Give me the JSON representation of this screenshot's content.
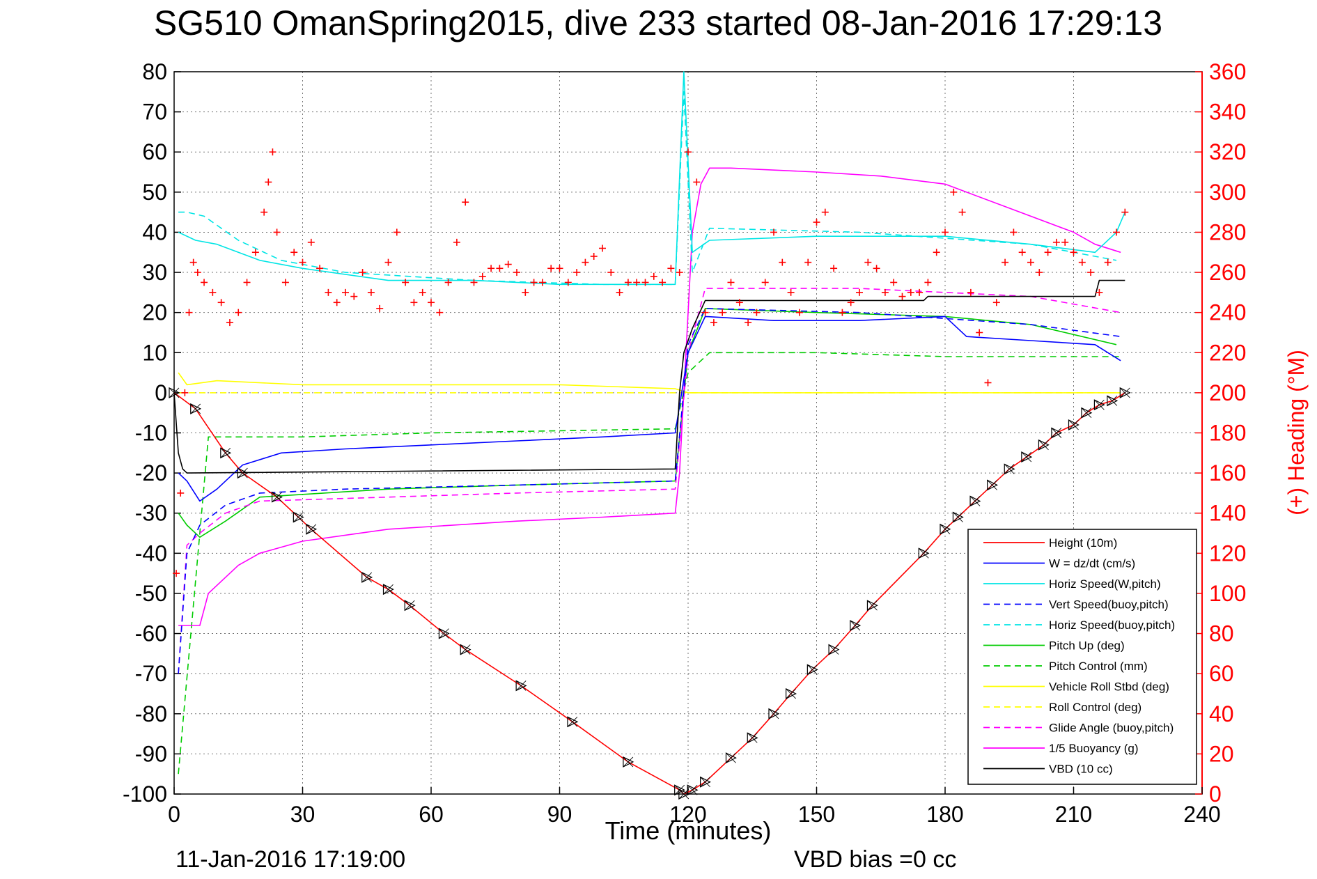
{
  "chart_data": {
    "type": "line",
    "title": "SG510 OmanSpring2015, dive 233 started 08-Jan-2016 17:29:13",
    "xlabel": "Time (minutes)",
    "ylabel": "",
    "y2label": "(+) Heading (°M)",
    "xlim": [
      0,
      240
    ],
    "ylim": [
      -100,
      80
    ],
    "y2lim": [
      0,
      360
    ],
    "x_ticks": [
      "0",
      "30",
      "60",
      "90",
      "120",
      "150",
      "180",
      "210",
      "240"
    ],
    "y_ticks": [
      "80",
      "70",
      "60",
      "50",
      "40",
      "30",
      "20",
      "10",
      "0",
      "-10",
      "-20",
      "-30",
      "-40",
      "-50",
      "-60",
      "-70",
      "-80",
      "-90",
      "-100"
    ],
    "y2_ticks": [
      "360",
      "340",
      "320",
      "300",
      "280",
      "260",
      "240",
      "220",
      "200",
      "180",
      "160",
      "140",
      "120",
      "100",
      "80",
      "60",
      "40",
      "20",
      "0"
    ],
    "grid": true,
    "legend_position": "bottom-right",
    "footer_date": "11-Jan-2016 17:19:00",
    "footer_bias": "VBD bias =0 cc",
    "series": [
      {
        "name": "Height (10m)",
        "color": "#ff0000",
        "style": "solid",
        "x": [
          0,
          5,
          12,
          16,
          24,
          29,
          32,
          45,
          50,
          55,
          63,
          68,
          81,
          93,
          106,
          118,
          119,
          121,
          124,
          130,
          135,
          140,
          144,
          149,
          154,
          159,
          163,
          175,
          180,
          183,
          187,
          191,
          195,
          199,
          203,
          206,
          210,
          213,
          216,
          219,
          222
        ],
        "y": [
          0,
          -4,
          -15,
          -20,
          -26,
          -31,
          -34,
          -46,
          -49,
          -53,
          -60,
          -64,
          -73,
          -82,
          -92,
          -99,
          -100,
          -99,
          -97,
          -91,
          -86,
          -80,
          -75,
          -69,
          -64,
          -58,
          -53,
          -40,
          -34,
          -31,
          -27,
          -23,
          -19,
          -16,
          -13,
          -10,
          -8,
          -5,
          -3,
          -2,
          0
        ]
      },
      {
        "name": "W = dz/dt (cm/s)",
        "color": "#0000ff",
        "style": "solid",
        "x": [
          1,
          3,
          6,
          10,
          16,
          25,
          40,
          60,
          80,
          100,
          117,
          120,
          124,
          140,
          160,
          180,
          185,
          200,
          215,
          221
        ],
        "y": [
          -20,
          -22,
          -27,
          -24,
          -18,
          -15,
          -14,
          -13,
          -12,
          -11,
          -10,
          10,
          19,
          18,
          18,
          19,
          14,
          13,
          12,
          8
        ]
      },
      {
        "name": "Horiz Speed(W,pitch)",
        "color": "#00e5e5",
        "style": "solid",
        "x": [
          1,
          5,
          10,
          20,
          30,
          50,
          70,
          90,
          110,
          117,
          119,
          121,
          125,
          150,
          180,
          200,
          215,
          220,
          222
        ],
        "y": [
          40,
          38,
          37,
          33,
          31,
          28,
          28,
          27,
          27,
          27,
          80,
          35,
          38,
          39,
          39,
          37,
          35,
          40,
          45
        ]
      },
      {
        "name": "Vert Speed(buoy,pitch)",
        "color": "#0000ff",
        "style": "dashed",
        "x": [
          1,
          3,
          6,
          12,
          20,
          40,
          80,
          117,
          120,
          124,
          160,
          200,
          221
        ],
        "y": [
          -70,
          -40,
          -33,
          -28,
          -25,
          -24,
          -23,
          -22,
          12,
          21,
          20,
          17,
          14
        ]
      },
      {
        "name": "Horiz Speed(buoy,pitch)",
        "color": "#00e5e5",
        "style": "dashed",
        "x": [
          1,
          3,
          7,
          15,
          25,
          40,
          70,
          100,
          117,
          119,
          121,
          125,
          160,
          200,
          220
        ],
        "y": [
          45,
          45,
          44,
          38,
          33,
          30,
          28,
          27,
          27,
          75,
          30,
          41,
          40,
          37,
          33
        ]
      },
      {
        "name": "Pitch Up (deg)",
        "color": "#00cc00",
        "style": "solid",
        "x": [
          1,
          3,
          6,
          12,
          20,
          50,
          80,
          117,
          120,
          124,
          150,
          180,
          200,
          220
        ],
        "y": [
          -30,
          -33,
          -36,
          -32,
          -26,
          -24,
          -23,
          -22,
          10,
          21,
          20,
          19,
          17,
          12
        ]
      },
      {
        "name": "Pitch Control (mm)",
        "color": "#00cc00",
        "style": "dashed",
        "x": [
          1,
          8,
          30,
          60,
          117,
          120,
          125,
          150,
          180,
          210,
          221
        ],
        "y": [
          -95,
          -11,
          -11,
          -10,
          -9,
          5,
          10,
          10,
          9,
          9,
          9
        ]
      },
      {
        "name": "Vehicle Roll Stbd (deg)",
        "color": "#ffff00",
        "style": "solid",
        "x": [
          1,
          3,
          10,
          30,
          60,
          90,
          117,
          120,
          125,
          150,
          180,
          200,
          221
        ],
        "y": [
          5,
          2,
          3,
          2,
          2,
          2,
          1,
          0,
          0,
          0,
          0,
          0,
          0
        ]
      },
      {
        "name": "Roll Control (deg)",
        "color": "#ffff00",
        "style": "dashed",
        "x": [
          1,
          30,
          60,
          90,
          117,
          120,
          150,
          180,
          221
        ],
        "y": [
          0,
          0,
          0,
          0,
          0,
          0,
          0,
          0,
          0
        ]
      },
      {
        "name": "Glide Angle (buoy,pitch)",
        "color": "#ff00ff",
        "style": "dashed",
        "x": [
          1,
          3,
          6,
          12,
          20,
          50,
          80,
          117,
          120,
          124,
          160,
          200,
          221
        ],
        "y": [
          -70,
          -38,
          -35,
          -30,
          -27,
          -26,
          -25,
          -24,
          10,
          26,
          26,
          24,
          20
        ]
      },
      {
        "name": "1/5 Buoyancy (g)",
        "color": "#ff00ff",
        "style": "solid",
        "x": [
          1,
          3,
          6,
          8,
          15,
          20,
          30,
          50,
          80,
          100,
          117,
          118,
          120,
          121,
          123,
          125,
          130,
          150,
          165,
          180,
          195,
          210,
          215,
          221
        ],
        "y": [
          -58,
          -58,
          -58,
          -50,
          -43,
          -40,
          -37,
          -34,
          -32,
          -31,
          -30,
          -20,
          20,
          40,
          52,
          56,
          56,
          55,
          54,
          52,
          46,
          40,
          37,
          35
        ]
      },
      {
        "name": "VBD (10 cc)",
        "color": "#000000",
        "style": "solid",
        "x": [
          0,
          1,
          2,
          3,
          117,
          118,
          119,
          121,
          124,
          125,
          175,
          176,
          214,
          215,
          216,
          222
        ],
        "y": [
          0,
          -15,
          -19,
          -20,
          -19,
          0,
          10,
          16,
          23,
          23,
          23,
          24,
          24,
          24,
          28,
          28
        ]
      }
    ],
    "heading": {
      "name": "(+) Heading (°M)",
      "color": "#ff0000",
      "marker": "+",
      "x": [
        0.5,
        1.5,
        2.5,
        3.5,
        4.5,
        5.5,
        7,
        9,
        11,
        13,
        15,
        17,
        19,
        21,
        22,
        23,
        24,
        26,
        28,
        30,
        32,
        34,
        36,
        38,
        40,
        42,
        44,
        46,
        48,
        50,
        52,
        54,
        56,
        58,
        60,
        62,
        64,
        66,
        68,
        70,
        72,
        74,
        76,
        78,
        80,
        82,
        84,
        86,
        88,
        90,
        92,
        94,
        96,
        98,
        100,
        102,
        104,
        106,
        108,
        110,
        112,
        114,
        116,
        118,
        120,
        122,
        124,
        126,
        128,
        130,
        132,
        134,
        136,
        138,
        140,
        142,
        144,
        146,
        148,
        150,
        152,
        154,
        156,
        158,
        160,
        162,
        164,
        166,
        168,
        170,
        172,
        174,
        176,
        178,
        180,
        182,
        184,
        186,
        188,
        190,
        192,
        194,
        196,
        198,
        200,
        202,
        204,
        206,
        208,
        210,
        212,
        214,
        216,
        218,
        220,
        222
      ],
      "y": [
        110,
        150,
        200,
        240,
        265,
        260,
        255,
        250,
        245,
        235,
        240,
        255,
        270,
        290,
        305,
        320,
        280,
        255,
        270,
        265,
        275,
        262,
        250,
        245,
        250,
        248,
        260,
        250,
        242,
        265,
        280,
        255,
        245,
        250,
        245,
        240,
        255,
        275,
        295,
        255,
        258,
        262,
        262,
        264,
        260,
        250,
        255,
        255,
        262,
        262,
        255,
        260,
        265,
        268,
        272,
        260,
        250,
        255,
        255,
        255,
        258,
        255,
        262,
        260,
        320,
        305,
        240,
        235,
        240,
        255,
        245,
        235,
        240,
        255,
        280,
        265,
        250,
        240,
        265,
        285,
        290,
        262,
        240,
        245,
        250,
        265,
        262,
        250,
        255,
        248,
        250,
        250,
        255,
        270,
        280,
        300,
        290,
        250,
        230,
        205,
        245,
        265,
        280,
        270,
        265,
        260,
        270,
        275,
        275,
        270,
        265,
        260,
        250,
        265,
        280,
        290
      ]
    }
  }
}
